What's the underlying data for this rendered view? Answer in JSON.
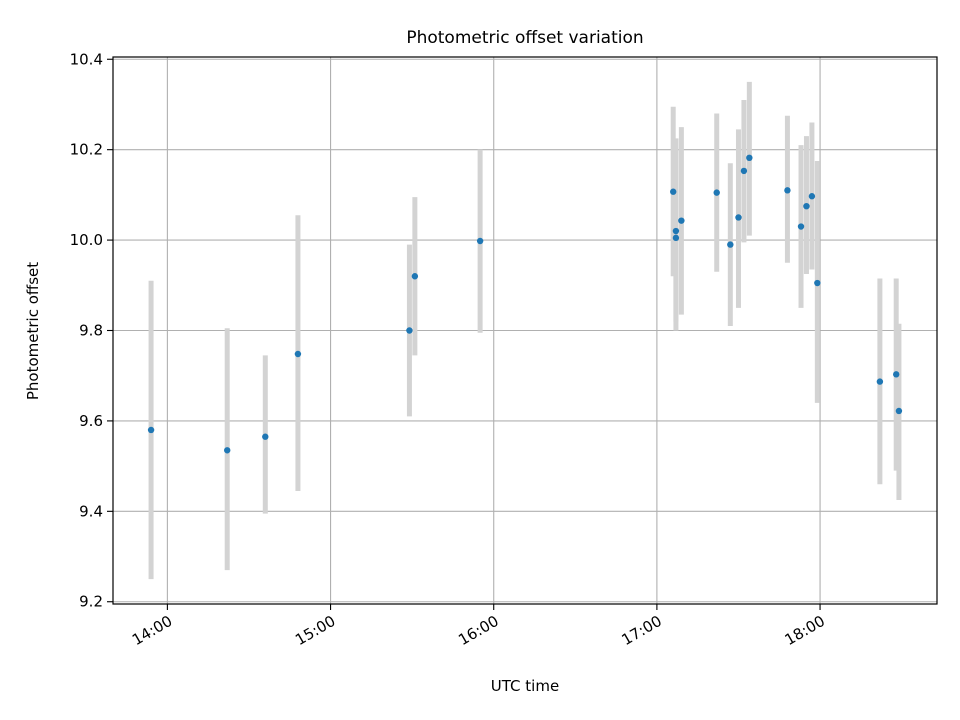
{
  "chart_data": {
    "type": "scatter",
    "title": "Photometric offset variation",
    "xlabel": "UTC time",
    "ylabel": "Photometric offset",
    "x_ticks": [
      "14:00",
      "15:00",
      "16:00",
      "17:00",
      "18:00"
    ],
    "y_ticks": [
      "9.2",
      "9.4",
      "9.6",
      "9.8",
      "10.0",
      "10.2",
      "10.4"
    ],
    "xlim": [
      "13:40",
      "18:43"
    ],
    "ylim": [
      9.195,
      10.405
    ],
    "grid": true,
    "colors": {
      "point": "#1f77b4",
      "errorbar": "#d3d3d3",
      "grid": "#b0b0b0"
    },
    "points": [
      {
        "x": "13:54",
        "y": 9.58,
        "err_low": 9.25,
        "err_high": 9.91
      },
      {
        "x": "14:22",
        "y": 9.535,
        "err_low": 9.27,
        "err_high": 9.805
      },
      {
        "x": "14:36",
        "y": 9.565,
        "err_low": 9.395,
        "err_high": 9.745
      },
      {
        "x": "14:48",
        "y": 9.748,
        "err_low": 9.445,
        "err_high": 10.055
      },
      {
        "x": "15:29",
        "y": 9.8,
        "err_low": 9.61,
        "err_high": 9.99
      },
      {
        "x": "15:31",
        "y": 9.92,
        "err_low": 9.745,
        "err_high": 10.095
      },
      {
        "x": "15:55",
        "y": 9.998,
        "err_low": 9.795,
        "err_high": 10.2
      },
      {
        "x": "17:06",
        "y": 10.107,
        "err_low": 9.92,
        "err_high": 10.295
      },
      {
        "x": "17:07",
        "y": 10.005,
        "err_low": 9.8,
        "err_high": 10.225
      },
      {
        "x": "17:07",
        "y": 10.02,
        "err_low": 9.82,
        "err_high": 10.2
      },
      {
        "x": "17:09",
        "y": 10.043,
        "err_low": 9.835,
        "err_high": 10.25
      },
      {
        "x": "17:22",
        "y": 10.105,
        "err_low": 9.93,
        "err_high": 10.28
      },
      {
        "x": "17:27",
        "y": 9.99,
        "err_low": 9.81,
        "err_high": 10.17
      },
      {
        "x": "17:30",
        "y": 10.05,
        "err_low": 9.85,
        "err_high": 10.245
      },
      {
        "x": "17:32",
        "y": 10.153,
        "err_low": 9.995,
        "err_high": 10.31
      },
      {
        "x": "17:34",
        "y": 10.182,
        "err_low": 10.01,
        "err_high": 10.35
      },
      {
        "x": "17:48",
        "y": 10.11,
        "err_low": 9.95,
        "err_high": 10.275
      },
      {
        "x": "17:53",
        "y": 10.03,
        "err_low": 9.85,
        "err_high": 10.21
      },
      {
        "x": "17:55",
        "y": 10.075,
        "err_low": 9.925,
        "err_high": 10.23
      },
      {
        "x": "17:57",
        "y": 10.097,
        "err_low": 9.935,
        "err_high": 10.26
      },
      {
        "x": "17:59",
        "y": 9.905,
        "err_low": 9.64,
        "err_high": 10.175
      },
      {
        "x": "18:22",
        "y": 9.687,
        "err_low": 9.46,
        "err_high": 9.915
      },
      {
        "x": "18:28",
        "y": 9.703,
        "err_low": 9.49,
        "err_high": 9.915
      },
      {
        "x": "18:29",
        "y": 9.622,
        "err_low": 9.425,
        "err_high": 9.815
      }
    ]
  }
}
